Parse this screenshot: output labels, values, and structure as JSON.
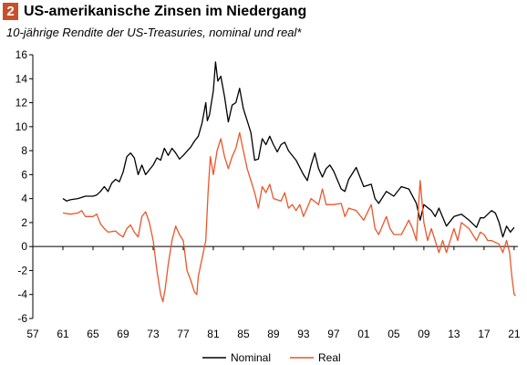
{
  "header": {
    "number": "2",
    "title": "US-amerikanische Zinsen im Niedergang",
    "subtitle": "10-jährige Rendite der US-Treasuries, nominal und real*"
  },
  "colors": {
    "nominal": "#000000",
    "real": "#e8572a",
    "accent": "#c8502a",
    "axis": "#000000"
  },
  "chart_data": {
    "type": "line",
    "title": "US-amerikanische Zinsen im Niedergang",
    "subtitle": "10-jährige Rendite der US-Treasuries, nominal und real*",
    "xlabel": "",
    "ylabel": "",
    "xlim": [
      1957,
      2021.5
    ],
    "ylim": [
      -6,
      16
    ],
    "x_ticks": [
      1957,
      1961,
      1965,
      1969,
      1973,
      1977,
      1981,
      1985,
      1989,
      1993,
      1997,
      2001,
      2005,
      2009,
      2013,
      2017,
      2021
    ],
    "x_tick_labels": [
      "57",
      "61",
      "65",
      "69",
      "73",
      "77",
      "81",
      "85",
      "89",
      "93",
      "97",
      "01",
      "05",
      "09",
      "13",
      "17",
      "21"
    ],
    "y_ticks": [
      -6,
      -4,
      -2,
      0,
      2,
      4,
      6,
      8,
      10,
      12,
      14,
      16
    ],
    "y_tick_labels": [
      "-6",
      "-4",
      "-2",
      "0",
      "2",
      "4",
      "6",
      "8",
      "10",
      "12",
      "14",
      "16"
    ],
    "grid": false,
    "legend_position": "bottom-center",
    "series": [
      {
        "name": "Nominal",
        "color": "#000000",
        "points": [
          [
            1961.0,
            4.0
          ],
          [
            1961.5,
            3.8
          ],
          [
            1962.0,
            3.9
          ],
          [
            1963.0,
            4.0
          ],
          [
            1964.0,
            4.2
          ],
          [
            1965.0,
            4.2
          ],
          [
            1965.5,
            4.3
          ],
          [
            1966.0,
            4.6
          ],
          [
            1966.5,
            5.0
          ],
          [
            1967.0,
            4.6
          ],
          [
            1967.5,
            5.3
          ],
          [
            1968.0,
            5.6
          ],
          [
            1968.5,
            5.4
          ],
          [
            1969.0,
            6.2
          ],
          [
            1969.5,
            7.5
          ],
          [
            1970.0,
            7.8
          ],
          [
            1970.5,
            7.4
          ],
          [
            1971.0,
            6.0
          ],
          [
            1971.5,
            6.8
          ],
          [
            1972.0,
            6.0
          ],
          [
            1972.5,
            6.4
          ],
          [
            1973.0,
            6.8
          ],
          [
            1973.5,
            7.4
          ],
          [
            1974.0,
            7.2
          ],
          [
            1974.5,
            8.2
          ],
          [
            1975.0,
            7.6
          ],
          [
            1975.5,
            8.2
          ],
          [
            1976.0,
            7.8
          ],
          [
            1976.5,
            7.3
          ],
          [
            1977.0,
            7.6
          ],
          [
            1978.0,
            8.3
          ],
          [
            1978.5,
            8.8
          ],
          [
            1979.0,
            9.2
          ],
          [
            1979.5,
            10.3
          ],
          [
            1980.0,
            12.0
          ],
          [
            1980.2,
            10.5
          ],
          [
            1980.5,
            11.0
          ],
          [
            1981.0,
            13.0
          ],
          [
            1981.3,
            15.4
          ],
          [
            1981.6,
            13.8
          ],
          [
            1982.0,
            14.2
          ],
          [
            1982.5,
            12.5
          ],
          [
            1983.0,
            10.4
          ],
          [
            1983.5,
            11.8
          ],
          [
            1984.0,
            12.0
          ],
          [
            1984.5,
            13.2
          ],
          [
            1985.0,
            11.5
          ],
          [
            1985.5,
            10.5
          ],
          [
            1986.0,
            9.5
          ],
          [
            1986.5,
            7.2
          ],
          [
            1987.0,
            7.3
          ],
          [
            1987.5,
            9.0
          ],
          [
            1988.0,
            8.5
          ],
          [
            1988.5,
            9.2
          ],
          [
            1989.0,
            8.5
          ],
          [
            1989.5,
            7.9
          ],
          [
            1990.0,
            8.5
          ],
          [
            1990.5,
            8.7
          ],
          [
            1991.0,
            8.0
          ],
          [
            1992.0,
            7.2
          ],
          [
            1993.0,
            6.0
          ],
          [
            1993.5,
            5.5
          ],
          [
            1994.0,
            6.8
          ],
          [
            1994.5,
            7.8
          ],
          [
            1995.0,
            6.5
          ],
          [
            1995.5,
            5.8
          ],
          [
            1996.0,
            6.5
          ],
          [
            1996.5,
            6.8
          ],
          [
            1997.0,
            6.3
          ],
          [
            1998.0,
            4.8
          ],
          [
            1998.5,
            4.6
          ],
          [
            1999.0,
            5.6
          ],
          [
            2000.0,
            6.6
          ],
          [
            2000.5,
            5.8
          ],
          [
            2001.0,
            5.0
          ],
          [
            2002.0,
            5.2
          ],
          [
            2002.5,
            4.0
          ],
          [
            2003.0,
            3.6
          ],
          [
            2004.0,
            4.6
          ],
          [
            2005.0,
            4.2
          ],
          [
            2006.0,
            5.0
          ],
          [
            2007.0,
            4.8
          ],
          [
            2008.0,
            3.6
          ],
          [
            2008.5,
            2.2
          ],
          [
            2009.0,
            3.5
          ],
          [
            2010.0,
            3.0
          ],
          [
            2010.5,
            2.5
          ],
          [
            2011.0,
            3.2
          ],
          [
            2012.0,
            1.7
          ],
          [
            2013.0,
            2.5
          ],
          [
            2014.0,
            2.7
          ],
          [
            2015.0,
            2.2
          ],
          [
            2016.0,
            1.6
          ],
          [
            2016.5,
            2.4
          ],
          [
            2017.0,
            2.4
          ],
          [
            2018.0,
            3.0
          ],
          [
            2018.5,
            2.8
          ],
          [
            2019.0,
            2.0
          ],
          [
            2019.5,
            0.8
          ],
          [
            2020.0,
            1.7
          ],
          [
            2020.5,
            1.2
          ],
          [
            2021.0,
            1.6
          ]
        ]
      },
      {
        "name": "Real",
        "color": "#e8572a",
        "points": [
          [
            1961.0,
            2.8
          ],
          [
            1962.0,
            2.7
          ],
          [
            1963.0,
            2.8
          ],
          [
            1963.5,
            3.0
          ],
          [
            1964.0,
            2.5
          ],
          [
            1965.0,
            2.5
          ],
          [
            1965.5,
            2.7
          ],
          [
            1966.0,
            1.9
          ],
          [
            1966.5,
            1.5
          ],
          [
            1967.0,
            1.2
          ],
          [
            1968.0,
            1.3
          ],
          [
            1968.5,
            1.0
          ],
          [
            1969.0,
            0.8
          ],
          [
            1969.5,
            1.5
          ],
          [
            1970.0,
            1.8
          ],
          [
            1970.5,
            1.2
          ],
          [
            1971.0,
            0.8
          ],
          [
            1971.5,
            2.5
          ],
          [
            1972.0,
            2.9
          ],
          [
            1972.5,
            2.0
          ],
          [
            1973.0,
            0.5
          ],
          [
            1973.5,
            -2.0
          ],
          [
            1974.0,
            -4.0
          ],
          [
            1974.3,
            -4.6
          ],
          [
            1974.6,
            -3.5
          ],
          [
            1975.0,
            -1.5
          ],
          [
            1975.5,
            0.5
          ],
          [
            1976.0,
            1.7
          ],
          [
            1976.5,
            1.0
          ],
          [
            1977.0,
            0.5
          ],
          [
            1977.5,
            -2.0
          ],
          [
            1978.0,
            -2.8
          ],
          [
            1978.5,
            -3.8
          ],
          [
            1978.8,
            -4.0
          ],
          [
            1979.0,
            -2.5
          ],
          [
            1979.5,
            -1.0
          ],
          [
            1980.0,
            0.5
          ],
          [
            1980.3,
            4.5
          ],
          [
            1980.6,
            7.5
          ],
          [
            1981.0,
            6.0
          ],
          [
            1981.5,
            8.0
          ],
          [
            1982.0,
            9.0
          ],
          [
            1982.5,
            7.5
          ],
          [
            1983.0,
            6.5
          ],
          [
            1983.5,
            7.5
          ],
          [
            1984.0,
            8.2
          ],
          [
            1984.5,
            9.5
          ],
          [
            1985.0,
            8.0
          ],
          [
            1985.5,
            6.5
          ],
          [
            1986.0,
            5.5
          ],
          [
            1986.5,
            4.5
          ],
          [
            1987.0,
            3.2
          ],
          [
            1987.5,
            5.0
          ],
          [
            1988.0,
            4.5
          ],
          [
            1988.5,
            5.2
          ],
          [
            1989.0,
            4.0
          ],
          [
            1990.0,
            3.8
          ],
          [
            1990.5,
            4.5
          ],
          [
            1991.0,
            3.2
          ],
          [
            1991.5,
            3.5
          ],
          [
            1992.0,
            3.0
          ],
          [
            1992.5,
            3.5
          ],
          [
            1993.0,
            2.5
          ],
          [
            1994.0,
            4.0
          ],
          [
            1995.0,
            3.5
          ],
          [
            1995.5,
            4.8
          ],
          [
            1996.0,
            3.5
          ],
          [
            1997.0,
            3.5
          ],
          [
            1998.0,
            3.6
          ],
          [
            1998.5,
            2.5
          ],
          [
            1999.0,
            3.2
          ],
          [
            2000.0,
            3.0
          ],
          [
            2001.0,
            2.2
          ],
          [
            2002.0,
            3.5
          ],
          [
            2002.5,
            1.5
          ],
          [
            2003.0,
            1.0
          ],
          [
            2004.0,
            2.5
          ],
          [
            2004.5,
            1.5
          ],
          [
            2005.0,
            1.0
          ],
          [
            2006.0,
            1.0
          ],
          [
            2007.0,
            2.2
          ],
          [
            2007.5,
            1.5
          ],
          [
            2008.0,
            0.5
          ],
          [
            2008.5,
            5.5
          ],
          [
            2009.0,
            2.0
          ],
          [
            2009.5,
            0.5
          ],
          [
            2010.0,
            1.5
          ],
          [
            2011.0,
            -0.5
          ],
          [
            2011.5,
            0.5
          ],
          [
            2012.0,
            -0.5
          ],
          [
            2013.0,
            1.5
          ],
          [
            2013.5,
            0.5
          ],
          [
            2014.0,
            2.0
          ],
          [
            2015.0,
            1.5
          ],
          [
            2016.0,
            0.5
          ],
          [
            2016.5,
            1.2
          ],
          [
            2017.0,
            1.0
          ],
          [
            2017.5,
            0.5
          ],
          [
            2018.0,
            0.5
          ],
          [
            2019.0,
            0.2
          ],
          [
            2019.5,
            -0.5
          ],
          [
            2020.0,
            0.5
          ],
          [
            2020.4,
            -0.5
          ],
          [
            2020.7,
            -2.5
          ],
          [
            2021.0,
            -4.0
          ],
          [
            2021.2,
            -4.1
          ]
        ]
      }
    ]
  }
}
